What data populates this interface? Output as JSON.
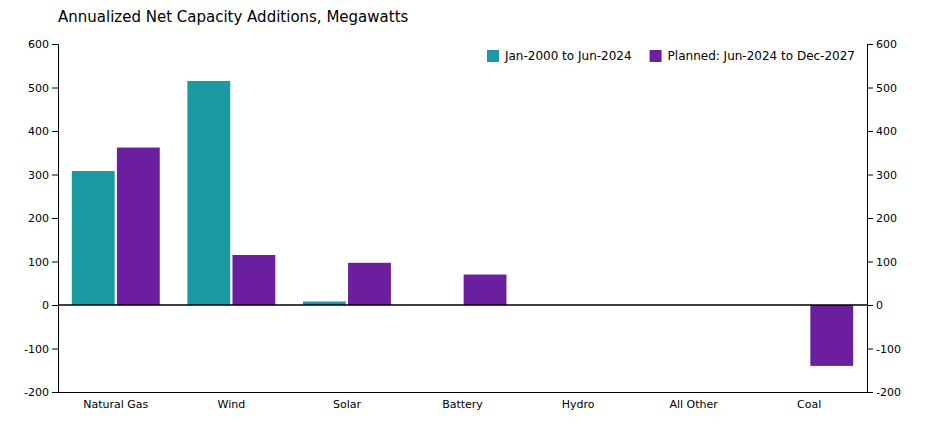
{
  "chart_data": {
    "type": "bar",
    "title": "Annualized Net Capacity Additions, Megawatts",
    "categories": [
      "Natural Gas",
      "Wind",
      "Solar",
      "Battery",
      "Hydro",
      "All Other",
      "Coal"
    ],
    "series": [
      {
        "name": "Jan-2000 to Jun-2024",
        "color": "#1a9aa0",
        "values": [
          308,
          515,
          8,
          0,
          0,
          0,
          0
        ]
      },
      {
        "name": "Planned: Jun-2024 to Dec-2027",
        "color": "#6b1f9e",
        "values": [
          362,
          115,
          97,
          70,
          0,
          0,
          -140
        ]
      }
    ],
    "ylim": [
      -200,
      600
    ],
    "yticks": [
      -200,
      -100,
      0,
      100,
      200,
      300,
      400,
      500,
      600
    ],
    "y2lim": [
      -200,
      600
    ],
    "y2ticks": [
      -200,
      -100,
      0,
      100,
      200,
      300,
      400,
      500,
      600
    ],
    "grid": false,
    "legend": "upper right"
  }
}
